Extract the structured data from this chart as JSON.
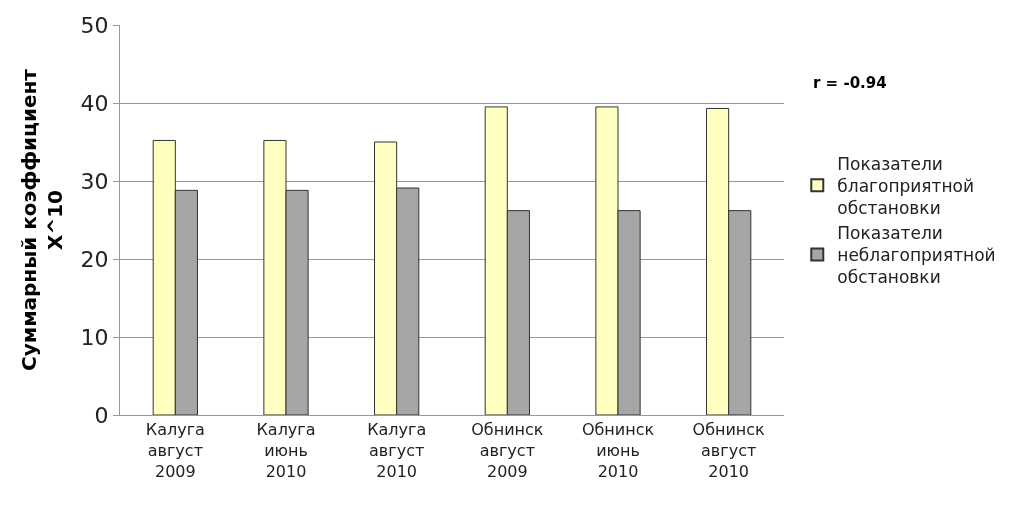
{
  "chart_data": {
    "type": "bar",
    "ylabel": "Суммарный коэффициент X^10",
    "categories": [
      "Калуга август 2009",
      "Калуга июнь 2010",
      "Калуга август 2010",
      "Обнинск август 2009",
      "Обнинск июнь 2010",
      "Обнинск август 2010"
    ],
    "series": [
      {
        "name": "Показатели благоприятной обстановки",
        "color": "#ffffc0",
        "values": [
          35.2,
          35.2,
          35.0,
          39.5,
          39.5,
          39.3
        ]
      },
      {
        "name": "Показатели неблагоприятной обстановки",
        "color": "#a6a6a6",
        "values": [
          28.8,
          28.8,
          29.1,
          26.2,
          26.2,
          26.2
        ]
      }
    ],
    "ylim": [
      0,
      50
    ],
    "yticks": [
      0,
      10,
      20,
      30,
      40,
      50
    ],
    "grid": "y",
    "legend": "right",
    "annotations": [
      "r = -0.94"
    ]
  }
}
